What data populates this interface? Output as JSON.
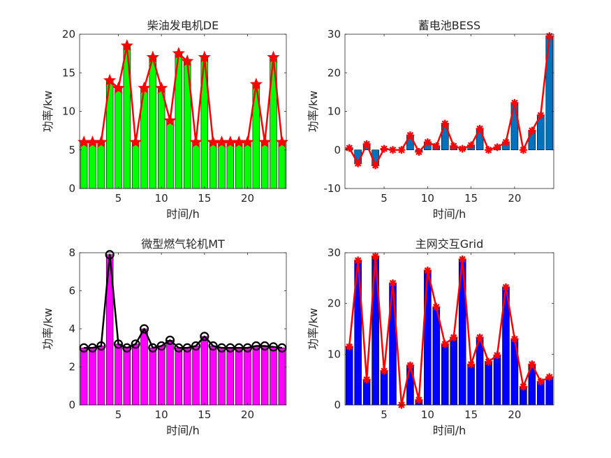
{
  "chart_data": [
    {
      "type": "bar",
      "overlay": "line",
      "title": "柴油发电机DE",
      "xlabel": "时间/h",
      "ylabel": "功率/kw",
      "x": [
        1,
        2,
        3,
        4,
        5,
        6,
        7,
        8,
        9,
        10,
        11,
        12,
        13,
        14,
        15,
        16,
        17,
        18,
        19,
        20,
        21,
        22,
        23,
        24
      ],
      "values": [
        6,
        6,
        6,
        14,
        13,
        18.5,
        6,
        13,
        17,
        13,
        8.8,
        17.5,
        16.5,
        6,
        17,
        6,
        6,
        6,
        6,
        6,
        13.5,
        6,
        17,
        6
      ],
      "xlim": [
        0.5,
        24.5
      ],
      "ylim": [
        0,
        20
      ],
      "xticks": [
        5,
        10,
        15,
        20
      ],
      "yticks": [
        0,
        5,
        10,
        15,
        20
      ],
      "bar_color": "#00ff00",
      "line_color": "#ff0000",
      "marker": "star",
      "marker_color": "#ff0000"
    },
    {
      "type": "bar",
      "overlay": "line",
      "title": "蓄电池BESS",
      "xlabel": "时间/h",
      "ylabel": "功率/kw",
      "x": [
        1,
        2,
        3,
        4,
        5,
        6,
        7,
        8,
        9,
        10,
        11,
        12,
        13,
        14,
        15,
        16,
        17,
        18,
        19,
        20,
        21,
        22,
        23,
        24
      ],
      "values": [
        0.5,
        -3.5,
        1.5,
        -4,
        0.3,
        0,
        0,
        3.8,
        -0.5,
        2,
        1,
        6.8,
        1,
        0.3,
        1.2,
        5.5,
        0,
        0.7,
        2,
        12.2,
        0,
        5,
        9,
        29.5
      ],
      "xlim": [
        0.5,
        24.5
      ],
      "ylim": [
        -10,
        30
      ],
      "xticks": [
        5,
        10,
        15,
        20
      ],
      "yticks": [
        -10,
        0,
        10,
        20,
        30
      ],
      "bar_color": "#0072bd",
      "line_color": "#ff0000",
      "marker": "asterisk",
      "marker_color": "#ff0000"
    },
    {
      "type": "bar",
      "overlay": "line",
      "title": "微型燃气轮机MT",
      "xlabel": "时间/h",
      "ylabel": "功率/kw",
      "x": [
        1,
        2,
        3,
        4,
        5,
        6,
        7,
        8,
        9,
        10,
        11,
        12,
        13,
        14,
        15,
        16,
        17,
        18,
        19,
        20,
        21,
        22,
        23,
        24
      ],
      "values": [
        3,
        3,
        3.1,
        7.9,
        3.2,
        3,
        3.2,
        4,
        3,
        3.1,
        3.4,
        3,
        3,
        3.1,
        3.6,
        3.1,
        3,
        3,
        3,
        3,
        3.1,
        3.1,
        3.05,
        3
      ],
      "xlim": [
        0.5,
        24.5
      ],
      "ylim": [
        0,
        8
      ],
      "xticks": [
        5,
        10,
        15,
        20
      ],
      "yticks": [
        0,
        2,
        4,
        6,
        8
      ],
      "bar_color": "#ff00ff",
      "line_color": "#000000",
      "marker": "circle",
      "marker_color": "#000000"
    },
    {
      "type": "bar",
      "overlay": "line",
      "title": "主网交互Grid",
      "xlabel": "时间/h",
      "ylabel": "功率/kw",
      "x": [
        1,
        2,
        3,
        4,
        5,
        6,
        7,
        8,
        9,
        10,
        11,
        12,
        13,
        14,
        15,
        16,
        17,
        18,
        19,
        20,
        21,
        22,
        23,
        24
      ],
      "values": [
        11.5,
        28.5,
        5,
        29.3,
        6.7,
        24,
        0,
        7.8,
        1,
        26.5,
        19.3,
        12,
        13.3,
        28.7,
        8,
        13.3,
        8.5,
        9.8,
        23.2,
        13,
        3.6,
        8,
        4.6,
        5.5
      ],
      "xlim": [
        0.5,
        24.5
      ],
      "ylim": [
        0,
        30
      ],
      "xticks": [
        5,
        10,
        15,
        20
      ],
      "yticks": [
        0,
        10,
        20,
        30
      ],
      "bar_color": "#0000ff",
      "line_color": "#ff0000",
      "marker": "asterisk",
      "marker_color": "#ff0000"
    }
  ]
}
